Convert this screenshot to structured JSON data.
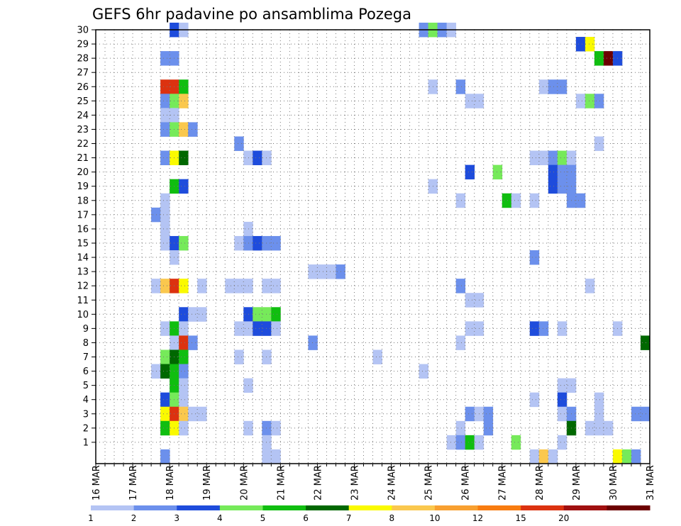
{
  "chart_data": {
    "type": "heatmap",
    "title": "GEFS 6hr padavine po ansamblima Pozega",
    "x_ticks": [
      "16 MAR",
      "17 MAR",
      "18 MAR",
      "19 MAR",
      "20 MAR",
      "21 MAR",
      "22 MAR",
      "23 MAR",
      "24 MAR",
      "25 MAR",
      "26 MAR",
      "27 MAR",
      "28 MAR",
      "29 MAR",
      "30 MAR",
      "31 MAR"
    ],
    "y_ticks": [
      "1",
      "2",
      "3",
      "4",
      "5",
      "6",
      "7",
      "8",
      "9",
      "10",
      "11",
      "12",
      "13",
      "14",
      "15",
      "16",
      "17",
      "18",
      "19",
      "20",
      "21",
      "22",
      "23",
      "24",
      "25",
      "26",
      "27",
      "28",
      "29",
      "30"
    ],
    "xlim": [
      "16 MAR",
      "31 MAR"
    ],
    "ylim": [
      0,
      30
    ],
    "grid": true,
    "legend": {
      "position": "bottom",
      "labels": [
        "1",
        "2",
        "3",
        "4",
        "5",
        "6",
        "7",
        "8",
        "10",
        "12",
        "15",
        "20"
      ],
      "colors": [
        "#b4c4f4",
        "#6c90ec",
        "#1e4cdc",
        "#76ea5a",
        "#10be10",
        "#006800",
        "#fafa00",
        "#fac84e",
        "#f8a030",
        "#f87c10",
        "#dc3210",
        "#a01010",
        "#6c0000"
      ]
    },
    "cells": [
      {
        "date": "18 MAR 00Z",
        "y": 30,
        "level": 2
      },
      {
        "date": "18 MAR 06Z",
        "y": 30,
        "level": 0
      },
      {
        "date": "24 MAR 18Z",
        "y": 30,
        "level": 1
      },
      {
        "date": "25 MAR 00Z",
        "y": 30,
        "level": 3
      },
      {
        "date": "25 MAR 06Z",
        "y": 30,
        "level": 1
      },
      {
        "date": "25 MAR 12Z",
        "y": 30,
        "level": 0
      },
      {
        "date": "29 MAR 00Z",
        "y": 29,
        "level": 2
      },
      {
        "date": "29 MAR 06Z",
        "y": 29,
        "level": 6
      },
      {
        "date": "17 MAR 18Z",
        "y": 28,
        "level": 1
      },
      {
        "date": "18 MAR 00Z",
        "y": 28,
        "level": 1
      },
      {
        "date": "29 MAR 12Z",
        "y": 28,
        "level": 4
      },
      {
        "date": "29 MAR 18Z",
        "y": 28,
        "level": 12
      },
      {
        "date": "30 MAR 00Z",
        "y": 28,
        "level": 2
      },
      {
        "date": "17 MAR 18Z",
        "y": 26,
        "level": 10
      },
      {
        "date": "18 MAR 00Z",
        "y": 26,
        "level": 10
      },
      {
        "date": "18 MAR 06Z",
        "y": 26,
        "level": 4
      },
      {
        "date": "25 MAR 00Z",
        "y": 26,
        "level": 0
      },
      {
        "date": "25 MAR 18Z",
        "y": 26,
        "level": 1
      },
      {
        "date": "28 MAR 00Z",
        "y": 26,
        "level": 0
      },
      {
        "date": "28 MAR 06Z",
        "y": 26,
        "level": 1
      },
      {
        "date": "28 MAR 12Z",
        "y": 26,
        "level": 1
      },
      {
        "date": "17 MAR 18Z",
        "y": 25,
        "level": 1
      },
      {
        "date": "18 MAR 00Z",
        "y": 25,
        "level": 3
      },
      {
        "date": "18 MAR 06Z",
        "y": 25,
        "level": 7
      },
      {
        "date": "26 MAR 00Z",
        "y": 25,
        "level": 0
      },
      {
        "date": "26 MAR 06Z",
        "y": 25,
        "level": 0
      },
      {
        "date": "29 MAR 00Z",
        "y": 25,
        "level": 0
      },
      {
        "date": "29 MAR 06Z",
        "y": 25,
        "level": 3
      },
      {
        "date": "29 MAR 12Z",
        "y": 25,
        "level": 1
      },
      {
        "date": "17 MAR 18Z",
        "y": 24,
        "level": 0
      },
      {
        "date": "18 MAR 00Z",
        "y": 24,
        "level": 0
      },
      {
        "date": "17 MAR 18Z",
        "y": 23,
        "level": 1
      },
      {
        "date": "18 MAR 00Z",
        "y": 23,
        "level": 3
      },
      {
        "date": "18 MAR 06Z",
        "y": 23,
        "level": 7
      },
      {
        "date": "18 MAR 12Z",
        "y": 23,
        "level": 1
      },
      {
        "date": "19 MAR 18Z",
        "y": 22,
        "level": 1
      },
      {
        "date": "29 MAR 12Z",
        "y": 22,
        "level": 0
      },
      {
        "date": "17 MAR 18Z",
        "y": 21,
        "level": 1
      },
      {
        "date": "18 MAR 00Z",
        "y": 21,
        "level": 6
      },
      {
        "date": "18 MAR 06Z",
        "y": 21,
        "level": 5
      },
      {
        "date": "20 MAR 00Z",
        "y": 21,
        "level": 0
      },
      {
        "date": "20 MAR 06Z",
        "y": 21,
        "level": 2
      },
      {
        "date": "20 MAR 12Z",
        "y": 21,
        "level": 0
      },
      {
        "date": "27 MAR 18Z",
        "y": 21,
        "level": 0
      },
      {
        "date": "28 MAR 00Z",
        "y": 21,
        "level": 0
      },
      {
        "date": "28 MAR 06Z",
        "y": 21,
        "level": 1
      },
      {
        "date": "28 MAR 12Z",
        "y": 21,
        "level": 3
      },
      {
        "date": "28 MAR 18Z",
        "y": 21,
        "level": 0
      },
      {
        "date": "26 MAR 00Z",
        "y": 20,
        "level": 2
      },
      {
        "date": "26 MAR 18Z",
        "y": 20,
        "level": 3
      },
      {
        "date": "28 MAR 06Z",
        "y": 20,
        "level": 2
      },
      {
        "date": "28 MAR 12Z",
        "y": 20,
        "level": 1
      },
      {
        "date": "28 MAR 18Z",
        "y": 20,
        "level": 1
      },
      {
        "date": "18 MAR 00Z",
        "y": 19,
        "level": 4
      },
      {
        "date": "18 MAR 06Z",
        "y": 19,
        "level": 2
      },
      {
        "date": "25 MAR 00Z",
        "y": 19,
        "level": 0
      },
      {
        "date": "28 MAR 06Z",
        "y": 19,
        "level": 2
      },
      {
        "date": "28 MAR 12Z",
        "y": 19,
        "level": 1
      },
      {
        "date": "28 MAR 18Z",
        "y": 19,
        "level": 1
      },
      {
        "date": "17 MAR 18Z",
        "y": 18,
        "level": 0
      },
      {
        "date": "25 MAR 18Z",
        "y": 18,
        "level": 0
      },
      {
        "date": "27 MAR 00Z",
        "y": 18,
        "level": 4
      },
      {
        "date": "27 MAR 06Z",
        "y": 18,
        "level": 0
      },
      {
        "date": "27 MAR 18Z",
        "y": 18,
        "level": 0
      },
      {
        "date": "28 MAR 18Z",
        "y": 18,
        "level": 1
      },
      {
        "date": "29 MAR 00Z",
        "y": 18,
        "level": 1
      },
      {
        "date": "17 MAR 12Z",
        "y": 17,
        "level": 1
      },
      {
        "date": "17 MAR 18Z",
        "y": 17,
        "level": 0
      },
      {
        "date": "17 MAR 18Z",
        "y": 16,
        "level": 0
      },
      {
        "date": "20 MAR 00Z",
        "y": 16,
        "level": 0
      },
      {
        "date": "17 MAR 18Z",
        "y": 15,
        "level": 0
      },
      {
        "date": "18 MAR 00Z",
        "y": 15,
        "level": 2
      },
      {
        "date": "18 MAR 06Z",
        "y": 15,
        "level": 3
      },
      {
        "date": "19 MAR 18Z",
        "y": 15,
        "level": 0
      },
      {
        "date": "20 MAR 00Z",
        "y": 15,
        "level": 1
      },
      {
        "date": "20 MAR 06Z",
        "y": 15,
        "level": 2
      },
      {
        "date": "20 MAR 12Z",
        "y": 15,
        "level": 1
      },
      {
        "date": "20 MAR 18Z",
        "y": 15,
        "level": 1
      },
      {
        "date": "18 MAR 00Z",
        "y": 14,
        "level": 0
      },
      {
        "date": "27 MAR 18Z",
        "y": 14,
        "level": 1
      },
      {
        "date": "21 MAR 18Z",
        "y": 13,
        "level": 0
      },
      {
        "date": "22 MAR 00Z",
        "y": 13,
        "level": 0
      },
      {
        "date": "22 MAR 06Z",
        "y": 13,
        "level": 0
      },
      {
        "date": "22 MAR 12Z",
        "y": 13,
        "level": 1
      },
      {
        "date": "17 MAR 12Z",
        "y": 12,
        "level": 0
      },
      {
        "date": "17 MAR 18Z",
        "y": 12,
        "level": 7
      },
      {
        "date": "18 MAR 00Z",
        "y": 12,
        "level": 10
      },
      {
        "date": "18 MAR 06Z",
        "y": 12,
        "level": 6
      },
      {
        "date": "18 MAR 18Z",
        "y": 12,
        "level": 0
      },
      {
        "date": "19 MAR 12Z",
        "y": 12,
        "level": 0
      },
      {
        "date": "19 MAR 18Z",
        "y": 12,
        "level": 0
      },
      {
        "date": "20 MAR 00Z",
        "y": 12,
        "level": 0
      },
      {
        "date": "20 MAR 12Z",
        "y": 12,
        "level": 0
      },
      {
        "date": "20 MAR 18Z",
        "y": 12,
        "level": 0
      },
      {
        "date": "25 MAR 18Z",
        "y": 12,
        "level": 1
      },
      {
        "date": "29 MAR 06Z",
        "y": 12,
        "level": 0
      },
      {
        "date": "26 MAR 00Z",
        "y": 11,
        "level": 0
      },
      {
        "date": "26 MAR 06Z",
        "y": 11,
        "level": 0
      },
      {
        "date": "18 MAR 06Z",
        "y": 10,
        "level": 2
      },
      {
        "date": "18 MAR 12Z",
        "y": 10,
        "level": 0
      },
      {
        "date": "18 MAR 18Z",
        "y": 10,
        "level": 0
      },
      {
        "date": "20 MAR 00Z",
        "y": 10,
        "level": 2
      },
      {
        "date": "20 MAR 06Z",
        "y": 10,
        "level": 3
      },
      {
        "date": "20 MAR 12Z",
        "y": 10,
        "level": 3
      },
      {
        "date": "20 MAR 18Z",
        "y": 10,
        "level": 4
      },
      {
        "date": "17 MAR 18Z",
        "y": 9,
        "level": 0
      },
      {
        "date": "18 MAR 00Z",
        "y": 9,
        "level": 4
      },
      {
        "date": "18 MAR 06Z",
        "y": 9,
        "level": 0
      },
      {
        "date": "19 MAR 18Z",
        "y": 9,
        "level": 0
      },
      {
        "date": "20 MAR 00Z",
        "y": 9,
        "level": 0
      },
      {
        "date": "20 MAR 06Z",
        "y": 9,
        "level": 2
      },
      {
        "date": "20 MAR 12Z",
        "y": 9,
        "level": 2
      },
      {
        "date": "20 MAR 18Z",
        "y": 9,
        "level": 0
      },
      {
        "date": "26 MAR 00Z",
        "y": 9,
        "level": 0
      },
      {
        "date": "26 MAR 06Z",
        "y": 9,
        "level": 0
      },
      {
        "date": "27 MAR 18Z",
        "y": 9,
        "level": 2
      },
      {
        "date": "28 MAR 00Z",
        "y": 9,
        "level": 1
      },
      {
        "date": "28 MAR 12Z",
        "y": 9,
        "level": 0
      },
      {
        "date": "30 MAR 00Z",
        "y": 9,
        "level": 0
      },
      {
        "date": "18 MAR 00Z",
        "y": 8,
        "level": 0
      },
      {
        "date": "18 MAR 06Z",
        "y": 8,
        "level": 10
      },
      {
        "date": "18 MAR 12Z",
        "y": 8,
        "level": 1
      },
      {
        "date": "21 MAR 18Z",
        "y": 8,
        "level": 1
      },
      {
        "date": "25 MAR 18Z",
        "y": 8,
        "level": 0
      },
      {
        "date": "30 MAR 18Z",
        "y": 8,
        "level": 5
      },
      {
        "date": "17 MAR 18Z",
        "y": 7,
        "level": 3
      },
      {
        "date": "18 MAR 00Z",
        "y": 7,
        "level": 5
      },
      {
        "date": "18 MAR 06Z",
        "y": 7,
        "level": 4
      },
      {
        "date": "19 MAR 18Z",
        "y": 7,
        "level": 0
      },
      {
        "date": "20 MAR 12Z",
        "y": 7,
        "level": 0
      },
      {
        "date": "23 MAR 12Z",
        "y": 7,
        "level": 0
      },
      {
        "date": "17 MAR 12Z",
        "y": 6,
        "level": 0
      },
      {
        "date": "17 MAR 18Z",
        "y": 6,
        "level": 5
      },
      {
        "date": "18 MAR 00Z",
        "y": 6,
        "level": 4
      },
      {
        "date": "18 MAR 06Z",
        "y": 6,
        "level": 1
      },
      {
        "date": "24 MAR 18Z",
        "y": 6,
        "level": 0
      },
      {
        "date": "18 MAR 00Z",
        "y": 5,
        "level": 4
      },
      {
        "date": "18 MAR 06Z",
        "y": 5,
        "level": 0
      },
      {
        "date": "20 MAR 00Z",
        "y": 5,
        "level": 0
      },
      {
        "date": "28 MAR 12Z",
        "y": 5,
        "level": 0
      },
      {
        "date": "28 MAR 18Z",
        "y": 5,
        "level": 0
      },
      {
        "date": "17 MAR 18Z",
        "y": 4,
        "level": 2
      },
      {
        "date": "18 MAR 00Z",
        "y": 4,
        "level": 3
      },
      {
        "date": "18 MAR 06Z",
        "y": 4,
        "level": 0
      },
      {
        "date": "27 MAR 18Z",
        "y": 4,
        "level": 0
      },
      {
        "date": "28 MAR 12Z",
        "y": 4,
        "level": 2
      },
      {
        "date": "29 MAR 12Z",
        "y": 4,
        "level": 0
      },
      {
        "date": "17 MAR 18Z",
        "y": 3,
        "level": 6
      },
      {
        "date": "18 MAR 00Z",
        "y": 3,
        "level": 10
      },
      {
        "date": "18 MAR 06Z",
        "y": 3,
        "level": 7
      },
      {
        "date": "18 MAR 12Z",
        "y": 3,
        "level": 0
      },
      {
        "date": "18 MAR 18Z",
        "y": 3,
        "level": 0
      },
      {
        "date": "26 MAR 00Z",
        "y": 3,
        "level": 1
      },
      {
        "date": "26 MAR 06Z",
        "y": 3,
        "level": 0
      },
      {
        "date": "26 MAR 12Z",
        "y": 3,
        "level": 1
      },
      {
        "date": "28 MAR 12Z",
        "y": 3,
        "level": 0
      },
      {
        "date": "28 MAR 18Z",
        "y": 3,
        "level": 1
      },
      {
        "date": "29 MAR 12Z",
        "y": 3,
        "level": 0
      },
      {
        "date": "30 MAR 12Z",
        "y": 3,
        "level": 1
      },
      {
        "date": "30 MAR 18Z",
        "y": 3,
        "level": 1
      },
      {
        "date": "17 MAR 18Z",
        "y": 2,
        "level": 4
      },
      {
        "date": "18 MAR 00Z",
        "y": 2,
        "level": 6
      },
      {
        "date": "18 MAR 06Z",
        "y": 2,
        "level": 0
      },
      {
        "date": "20 MAR 00Z",
        "y": 2,
        "level": 0
      },
      {
        "date": "20 MAR 12Z",
        "y": 2,
        "level": 1
      },
      {
        "date": "20 MAR 18Z",
        "y": 2,
        "level": 0
      },
      {
        "date": "25 MAR 18Z",
        "y": 2,
        "level": 0
      },
      {
        "date": "26 MAR 12Z",
        "y": 2,
        "level": 1
      },
      {
        "date": "28 MAR 18Z",
        "y": 2,
        "level": 5
      },
      {
        "date": "29 MAR 06Z",
        "y": 2,
        "level": 0
      },
      {
        "date": "29 MAR 12Z",
        "y": 2,
        "level": 0
      },
      {
        "date": "29 MAR 18Z",
        "y": 2,
        "level": 0
      },
      {
        "date": "20 MAR 12Z",
        "y": 1,
        "level": 0
      },
      {
        "date": "25 MAR 12Z",
        "y": 1,
        "level": 0
      },
      {
        "date": "25 MAR 18Z",
        "y": 1,
        "level": 1
      },
      {
        "date": "26 MAR 00Z",
        "y": 1,
        "level": 4
      },
      {
        "date": "26 MAR 06Z",
        "y": 1,
        "level": 0
      },
      {
        "date": "27 MAR 06Z",
        "y": 1,
        "level": 3
      },
      {
        "date": "28 MAR 12Z",
        "y": 1,
        "level": 0
      },
      {
        "date": "17 MAR 18Z",
        "y": 0,
        "level": 1
      },
      {
        "date": "20 MAR 12Z",
        "y": 0,
        "level": 0
      },
      {
        "date": "20 MAR 18Z",
        "y": 0,
        "level": 0
      },
      {
        "date": "27 MAR 18Z",
        "y": 0,
        "level": 0
      },
      {
        "date": "28 MAR 00Z",
        "y": 0,
        "level": 7
      },
      {
        "date": "28 MAR 06Z",
        "y": 0,
        "level": 0
      },
      {
        "date": "30 MAR 00Z",
        "y": 0,
        "level": 6
      },
      {
        "date": "30 MAR 06Z",
        "y": 0,
        "level": 3
      },
      {
        "date": "30 MAR 12Z",
        "y": 0,
        "level": 1
      }
    ]
  }
}
